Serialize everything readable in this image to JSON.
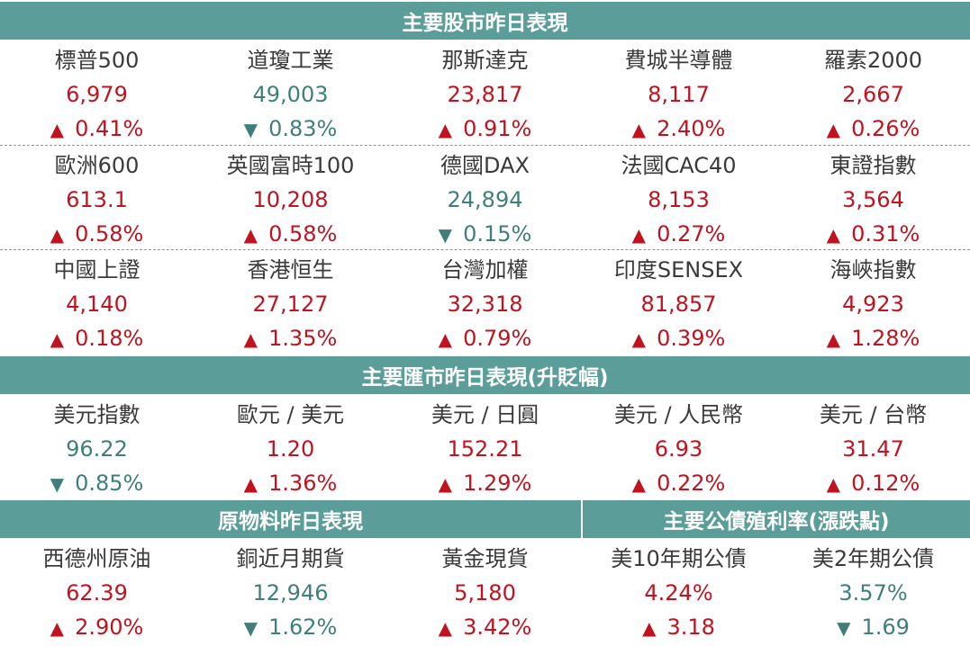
{
  "sections": {
    "stocks_title": "主要股市昨日表現",
    "fx_title": "主要匯市昨日表現(升貶幅)",
    "commodities_title": "原物料昨日表現",
    "bonds_title": "主要公債殖利率(漲跌點)"
  },
  "stocks": [
    {
      "name": "標普500",
      "value": "6,979",
      "dir": "up",
      "arrow": "▲",
      "change": "0.41%"
    },
    {
      "name": "道瓊工業",
      "value": "49,003",
      "dir": "down",
      "arrow": "▼",
      "change": "0.83%"
    },
    {
      "name": "那斯達克",
      "value": "23,817",
      "dir": "up",
      "arrow": "▲",
      "change": "0.91%"
    },
    {
      "name": "費城半導體",
      "value": "8,117",
      "dir": "up",
      "arrow": "▲",
      "change": "2.40%"
    },
    {
      "name": "羅素2000",
      "value": "2,667",
      "dir": "up",
      "arrow": "▲",
      "change": "0.26%"
    },
    {
      "name": "歐洲600",
      "value": "613.1",
      "dir": "up",
      "arrow": "▲",
      "change": "0.58%"
    },
    {
      "name": "英國富時100",
      "value": "10,208",
      "dir": "up",
      "arrow": "▲",
      "change": "0.58%"
    },
    {
      "name": "德國DAX",
      "value": "24,894",
      "dir": "down",
      "arrow": "▼",
      "change": "0.15%"
    },
    {
      "name": "法國CAC40",
      "value": "8,153",
      "dir": "up",
      "arrow": "▲",
      "change": "0.27%"
    },
    {
      "name": "東證指數",
      "value": "3,564",
      "dir": "up",
      "arrow": "▲",
      "change": "0.31%"
    },
    {
      "name": "中國上證",
      "value": "4,140",
      "dir": "up",
      "arrow": "▲",
      "change": "0.18%"
    },
    {
      "name": "香港恒生",
      "value": "27,127",
      "dir": "up",
      "arrow": "▲",
      "change": "1.35%"
    },
    {
      "name": "台灣加權",
      "value": "32,318",
      "dir": "up",
      "arrow": "▲",
      "change": "0.79%"
    },
    {
      "name": "印度SENSEX",
      "value": "81,857",
      "dir": "up",
      "arrow": "▲",
      "change": "0.39%"
    },
    {
      "name": "海峽指數",
      "value": "4,923",
      "dir": "up",
      "arrow": "▲",
      "change": "1.28%"
    }
  ],
  "fx": [
    {
      "name": "美元指數",
      "value": "96.22",
      "dir": "down",
      "arrow": "▼",
      "change": "0.85%"
    },
    {
      "name": "歐元 / 美元",
      "value": "1.20",
      "dir": "up",
      "arrow": "▲",
      "change": "1.36%"
    },
    {
      "name": "美元 / 日圓",
      "value": "152.21",
      "dir": "up",
      "arrow": "▲",
      "change": "1.29%"
    },
    {
      "name": "美元 / 人民幣",
      "value": "6.93",
      "dir": "up",
      "arrow": "▲",
      "change": "0.22%"
    },
    {
      "name": "美元 / 台幣",
      "value": "31.47",
      "dir": "up",
      "arrow": "▲",
      "change": "0.12%"
    }
  ],
  "commodities": [
    {
      "name": "西德州原油",
      "value": "62.39",
      "dir": "up",
      "arrow": "▲",
      "change": "2.90%"
    },
    {
      "name": "銅近月期貨",
      "value": "12,946",
      "dir": "down",
      "arrow": "▼",
      "change": "1.62%"
    },
    {
      "name": "黃金現貨",
      "value": "5,180",
      "dir": "up",
      "arrow": "▲",
      "change": "3.42%"
    }
  ],
  "bonds": [
    {
      "name": "美10年期公債",
      "value": "4.24%",
      "dir": "up",
      "arrow": "▲",
      "change": "3.18"
    },
    {
      "name": "美2年期公債",
      "value": "3.57%",
      "dir": "down",
      "arrow": "▼",
      "change": "1.69"
    }
  ],
  "colors": {
    "header_bg": "#5b9e99",
    "up": "#c0131f",
    "down": "#3f7f7a",
    "text": "#3a3a3a"
  }
}
